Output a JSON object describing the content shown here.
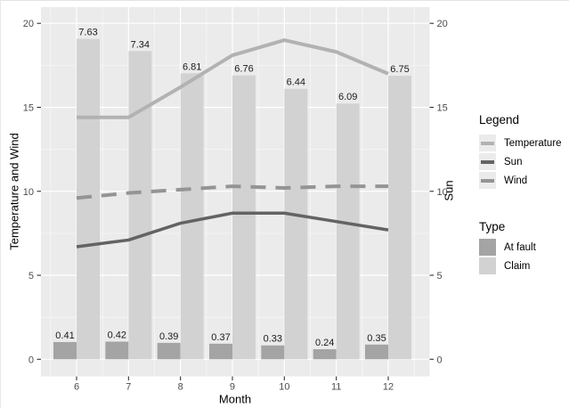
{
  "figure": {
    "x_axis_title": "Month",
    "y_axis_title_left": "Temperature and Wind",
    "y_axis_title_right": "Sun"
  },
  "legend": {
    "lines_title": "Legend",
    "line_items": [
      {
        "label": "Temperature",
        "color": "#b2b2b2"
      },
      {
        "label": "Sun",
        "color": "#636363"
      },
      {
        "label": "Wind",
        "color": "#949494"
      }
    ],
    "type_title": "Type",
    "fill_items": [
      {
        "label": "At fault",
        "color": "#a4a4a4"
      },
      {
        "label": "Claim",
        "color": "#d2d2d2"
      }
    ],
    "key_background": "#ebebeb"
  },
  "colors": {
    "panel_background": "#ebebeb",
    "grid_major": "#ffffff",
    "grid_minor": "#f6f6f6",
    "tick_mark": "#333333",
    "tick_label": "#4d4d4d",
    "bar_label": "#1a1a1a"
  },
  "chart_data": {
    "type": "combo-bar-line",
    "title": "",
    "x": [
      6,
      7,
      8,
      9,
      10,
      11,
      12
    ],
    "x_label": "Month",
    "y_label_left": "Temperature and Wind",
    "y_label_right": "Sun",
    "ylim": [
      0,
      20
    ],
    "y_ticks": [
      0,
      5,
      10,
      15,
      20
    ],
    "y_minor_ticks": [
      2.5,
      7.5,
      12.5,
      17.5
    ],
    "x_minor_ticks": [
      5.5,
      6.5,
      7.5,
      8.5,
      9.5,
      10.5,
      11.5,
      12.5
    ],
    "grid": true,
    "legend_position": "right",
    "bar_value_scale": 2.5,
    "bar_series": [
      {
        "name": "At fault",
        "color": "#a4a4a4",
        "values": [
          0.41,
          0.42,
          0.39,
          0.37,
          0.33,
          0.24,
          0.35
        ]
      },
      {
        "name": "Claim",
        "color": "#d2d2d2",
        "values": [
          7.63,
          7.34,
          6.81,
          6.76,
          6.44,
          6.09,
          6.75
        ]
      }
    ],
    "line_series": [
      {
        "name": "Temperature",
        "color": "#b2b2b2",
        "width": 4,
        "dash": "",
        "values": [
          14.4,
          14.4,
          16.2,
          18.1,
          19.0,
          18.3,
          17.0
        ]
      },
      {
        "name": "Sun",
        "color": "#636363",
        "width": 3.5,
        "dash": "",
        "values": [
          6.7,
          7.1,
          8.1,
          8.7,
          8.7,
          8.2,
          7.7
        ]
      },
      {
        "name": "Wind",
        "color": "#949494",
        "width": 4,
        "dash": "17,11",
        "values": [
          9.6,
          9.9,
          10.1,
          10.3,
          10.2,
          10.3,
          10.3
        ]
      }
    ]
  }
}
